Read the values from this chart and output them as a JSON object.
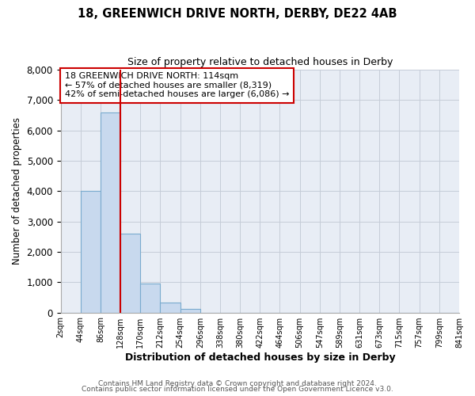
{
  "title1": "18, GREENWICH DRIVE NORTH, DERBY, DE22 4AB",
  "title2": "Size of property relative to detached houses in Derby",
  "xlabel": "Distribution of detached houses by size in Derby",
  "ylabel": "Number of detached properties",
  "bin_labels": [
    "2sqm",
    "44sqm",
    "86sqm",
    "128sqm",
    "170sqm",
    "212sqm",
    "254sqm",
    "296sqm",
    "338sqm",
    "380sqm",
    "422sqm",
    "464sqm",
    "506sqm",
    "547sqm",
    "589sqm",
    "631sqm",
    "673sqm",
    "715sqm",
    "757sqm",
    "799sqm",
    "841sqm"
  ],
  "bar_values": [
    0,
    4000,
    6600,
    2600,
    960,
    330,
    130,
    0,
    0,
    0,
    0,
    0,
    0,
    0,
    0,
    0,
    0,
    0,
    0,
    0
  ],
  "bar_color": "#c8d9ee",
  "bar_edge_color": "#7aabce",
  "property_line_color": "#cc0000",
  "ylim": [
    0,
    8000
  ],
  "yticks": [
    0,
    1000,
    2000,
    3000,
    4000,
    5000,
    6000,
    7000,
    8000
  ],
  "annotation_line1": "18 GREENWICH DRIVE NORTH: 114sqm",
  "annotation_line2": "← 57% of detached houses are smaller (8,319)",
  "annotation_line3": "42% of semi-detached houses are larger (6,086) →",
  "annotation_box_color": "#ffffff",
  "annotation_box_edge": "#cc0000",
  "footer1": "Contains HM Land Registry data © Crown copyright and database right 2024.",
  "footer2": "Contains public sector information licensed under the Open Government Licence v3.0.",
  "plot_bg_color": "#e8edf5",
  "fig_bg_color": "#ffffff",
  "grid_color": "#c5ccd8"
}
